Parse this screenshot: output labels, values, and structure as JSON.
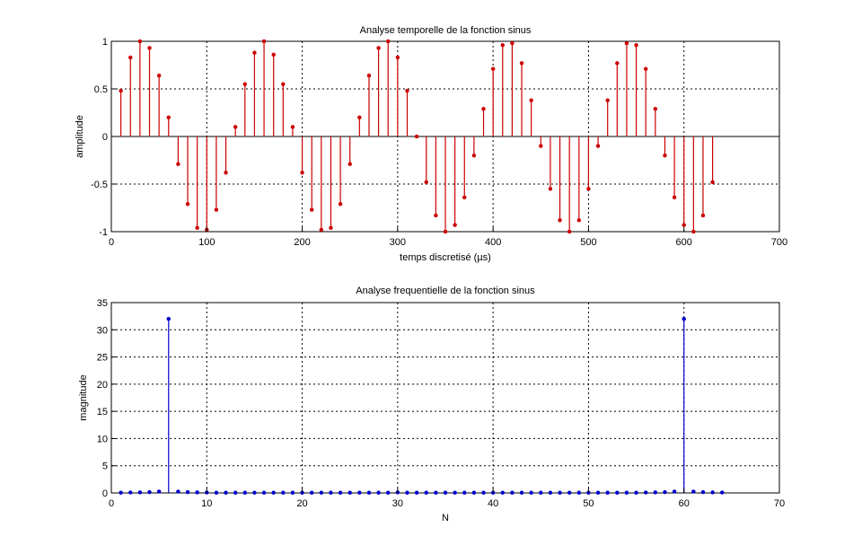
{
  "chart_data": [
    {
      "type": "stem",
      "title": "Analyse temporelle de la fonction sinus",
      "xlabel": "temps discretisé (µs)",
      "ylabel": "amplitude",
      "xlim": [
        0,
        700
      ],
      "ylim": [
        -1,
        1
      ],
      "xticks": [
        0,
        100,
        200,
        300,
        400,
        500,
        600,
        700
      ],
      "yticks": [
        -1,
        -0.5,
        0,
        0.5,
        1
      ],
      "grid": true,
      "color": "#cc0000",
      "x": [
        10,
        20,
        30,
        40,
        50,
        60,
        70,
        80,
        90,
        100,
        110,
        120,
        130,
        140,
        150,
        160,
        170,
        180,
        190,
        200,
        210,
        220,
        230,
        240,
        250,
        260,
        270,
        280,
        290,
        300,
        310,
        320,
        330,
        340,
        350,
        360,
        370,
        380,
        390,
        400,
        410,
        420,
        430,
        440,
        450,
        460,
        470,
        480,
        490,
        500,
        510,
        520,
        530,
        540,
        550,
        560,
        570,
        580,
        590,
        600,
        610,
        620,
        630
      ],
      "y": [
        0.48,
        0.83,
        1.0,
        0.93,
        0.64,
        0.2,
        -0.29,
        -0.71,
        -0.96,
        -0.98,
        -0.77,
        -0.38,
        0.1,
        0.55,
        0.88,
        1.0,
        0.86,
        0.55,
        0.1,
        -0.38,
        -0.77,
        -0.98,
        -0.96,
        -0.71,
        -0.29,
        0.2,
        0.64,
        0.93,
        1.0,
        0.83,
        0.48,
        0.0,
        -0.48,
        -0.83,
        -1.0,
        -0.93,
        -0.64,
        -0.2,
        0.29,
        0.71,
        0.96,
        0.98,
        0.77,
        0.38,
        -0.1,
        -0.55,
        -0.88,
        -1.0,
        -0.88,
        -0.55,
        -0.1,
        0.38,
        0.77,
        0.98,
        0.96,
        0.71,
        0.29,
        -0.2,
        -0.64,
        -0.93,
        -1.0,
        -0.83,
        -0.48
      ]
    },
    {
      "type": "stem",
      "title": "Analyse frequentielle de la fonction sinus",
      "xlabel": "N",
      "ylabel": "magnitude",
      "xlim": [
        0,
        70
      ],
      "ylim": [
        0,
        35
      ],
      "xticks": [
        0,
        10,
        20,
        30,
        40,
        50,
        60,
        70
      ],
      "yticks": [
        0,
        5,
        10,
        15,
        20,
        25,
        30,
        35
      ],
      "grid": true,
      "color": "#0000cc",
      "x": [
        1,
        2,
        3,
        4,
        5,
        6,
        7,
        8,
        9,
        10,
        11,
        12,
        13,
        14,
        15,
        16,
        17,
        18,
        19,
        20,
        21,
        22,
        23,
        24,
        25,
        26,
        27,
        28,
        29,
        30,
        31,
        32,
        33,
        34,
        35,
        36,
        37,
        38,
        39,
        40,
        41,
        42,
        43,
        44,
        45,
        46,
        47,
        48,
        49,
        50,
        51,
        52,
        53,
        54,
        55,
        56,
        57,
        58,
        59,
        60,
        61,
        62,
        63,
        64
      ],
      "y": [
        0.05,
        0.08,
        0.1,
        0.15,
        0.25,
        32.0,
        0.25,
        0.15,
        0.1,
        0.08,
        0.05,
        0.05,
        0.05,
        0.05,
        0.05,
        0.05,
        0.05,
        0.05,
        0.05,
        0.05,
        0.05,
        0.05,
        0.05,
        0.05,
        0.05,
        0.05,
        0.05,
        0.05,
        0.05,
        0.1,
        0.05,
        0.05,
        0.05,
        0.05,
        0.05,
        0.05,
        0.05,
        0.05,
        0.05,
        0.05,
        0.05,
        0.05,
        0.05,
        0.05,
        0.05,
        0.05,
        0.05,
        0.05,
        0.05,
        0.05,
        0.05,
        0.05,
        0.05,
        0.05,
        0.05,
        0.08,
        0.1,
        0.15,
        0.25,
        32.0,
        0.25,
        0.15,
        0.1,
        0.08
      ]
    }
  ]
}
